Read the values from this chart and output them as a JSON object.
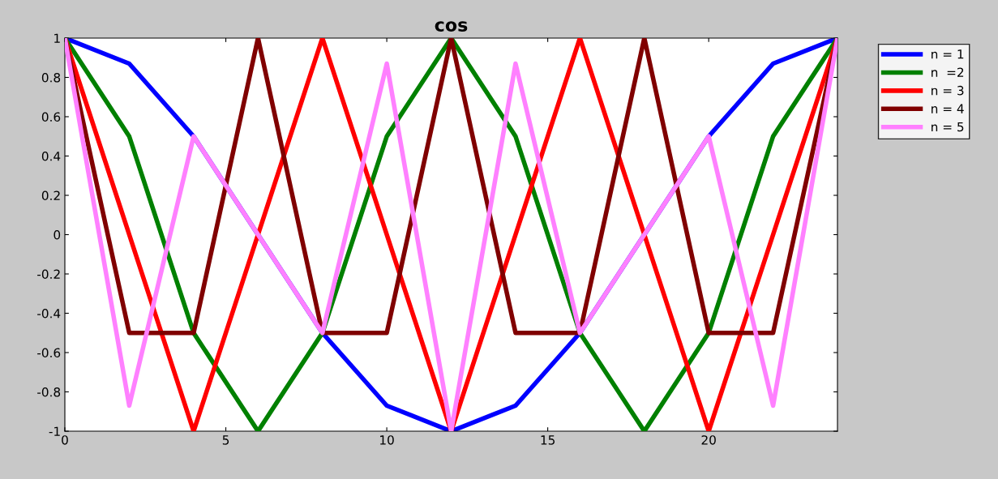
{
  "chart_data": {
    "type": "line",
    "title": "cos",
    "x": [
      0,
      2,
      4,
      6,
      8,
      10,
      12,
      14,
      16,
      18,
      20,
      22,
      24
    ],
    "series": [
      {
        "name": "n = 1",
        "color": "#0000ff",
        "values": [
          1,
          0.87,
          0.5,
          0,
          -0.5,
          -0.87,
          -1,
          -0.87,
          -0.5,
          0,
          0.5,
          0.87,
          1
        ]
      },
      {
        "name": "n  =2",
        "color": "#008000",
        "values": [
          1,
          0.5,
          -0.5,
          -1,
          -0.5,
          0.5,
          1,
          0.5,
          -0.5,
          -1,
          -0.5,
          0.5,
          1
        ]
      },
      {
        "name": "n = 3",
        "color": "#ff0000",
        "values": [
          1,
          0,
          -1,
          0,
          1,
          0,
          -1,
          0,
          1,
          0,
          -1,
          0,
          1
        ]
      },
      {
        "name": "n = 4",
        "color": "#800000",
        "values": [
          1,
          -0.5,
          -0.5,
          1,
          -0.5,
          -0.5,
          1,
          -0.5,
          -0.5,
          1,
          -0.5,
          -0.5,
          1
        ]
      },
      {
        "name": "n = 5",
        "color": "#ff80ff",
        "values": [
          1,
          -0.87,
          0.5,
          0,
          -0.5,
          0.87,
          -1,
          0.87,
          -0.5,
          0,
          0.5,
          -0.87,
          1
        ]
      }
    ],
    "xlim": [
      0,
      24
    ],
    "xticks": [
      0,
      5,
      10,
      15,
      20
    ],
    "ylim": [
      -1,
      1
    ],
    "yticks": [
      -1,
      -0.8,
      -0.6,
      -0.4,
      -0.2,
      0,
      0.2,
      0.4,
      0.6,
      0.8,
      1
    ],
    "grid": false,
    "legend": "top right",
    "line_style": "solid"
  }
}
